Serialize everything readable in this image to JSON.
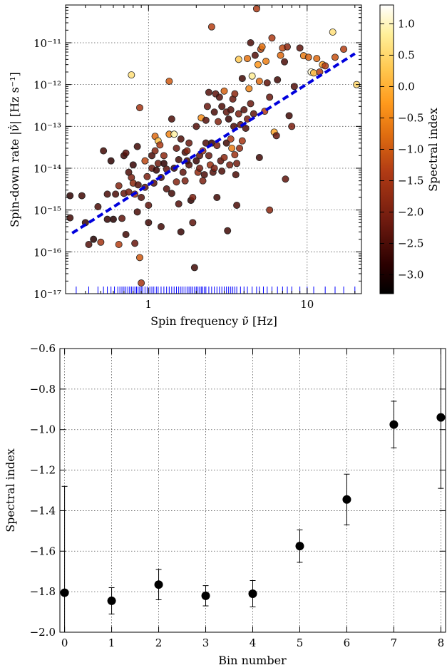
{
  "chart_data": [
    {
      "type": "scatter",
      "xlabel": "Spin frequency ν̃ [Hz]",
      "ylabel": "Spin-down rate |ν̃̇| [Hz s⁻¹]",
      "xscale": "log",
      "yscale": "log",
      "xlim": [
        0.3,
        22
      ],
      "ylim": [
        1e-17,
        8e-11
      ],
      "x_tick_labels": [
        "1",
        "10"
      ],
      "y_tick_labels": [
        "10⁻¹⁷",
        "10⁻¹⁶",
        "10⁻¹⁵",
        "10⁻¹⁴",
        "10⁻¹³",
        "10⁻¹²",
        "10⁻¹¹"
      ],
      "grid": true,
      "colorbar": {
        "label": "Spectral index",
        "range": [
          -3.3,
          1.3
        ],
        "tick_labels": [
          "1.0",
          "0.5",
          "0.0",
          "−0.5",
          "−1.0",
          "−1.5",
          "−2.0",
          "−2.5",
          "−3.0"
        ]
      },
      "fit_line": {
        "x": [
          0.33,
          20
        ],
        "y": [
          2.8e-16,
          5.5e-12
        ],
        "color": "#0000dd",
        "style": "dashed"
      },
      "rug_color": "#0000ff",
      "rug_x": [
        0.35,
        0.42,
        0.48,
        0.52,
        0.55,
        0.58,
        0.61,
        0.64,
        0.66,
        0.68,
        0.7,
        0.72,
        0.74,
        0.76,
        0.78,
        0.8,
        0.82,
        0.84,
        0.86,
        0.88,
        0.9,
        0.92,
        0.95,
        0.98,
        1.02,
        1.05,
        1.08,
        1.12,
        1.15,
        1.2,
        1.25,
        1.3,
        1.35,
        1.4,
        1.45,
        1.5,
        1.55,
        1.6,
        1.65,
        1.7,
        1.75,
        1.8,
        1.85,
        1.9,
        1.95,
        2.0,
        2.05,
        2.1,
        2.15,
        2.2,
        2.25,
        2.3,
        2.4,
        2.5,
        2.6,
        2.7,
        2.8,
        2.9,
        3.0,
        3.1,
        3.2,
        3.3,
        3.4,
        3.5,
        3.6,
        3.8,
        4.0,
        4.2,
        4.5,
        4.8,
        5.0,
        5.3,
        5.6,
        6.0,
        6.5,
        7.0,
        7.5,
        8.0,
        9.0,
        10.0,
        11.0,
        13.0,
        15.0,
        17.0,
        20.0
      ],
      "points": [
        [
          0.32,
          2.2e-15,
          -2.8
        ],
        [
          0.32,
          6.5e-16,
          -2.6
        ],
        [
          0.38,
          2.2e-15,
          -2.6
        ],
        [
          0.4,
          5e-16,
          -2.7
        ],
        [
          0.42,
          1.5e-16,
          -2.4
        ],
        [
          0.45,
          2e-16,
          -2.9
        ],
        [
          0.48,
          1.2e-15,
          -2.5
        ],
        [
          0.5,
          1.7e-16,
          -1.5
        ],
        [
          0.52,
          2.6e-14,
          -2.6
        ],
        [
          0.55,
          2.4e-15,
          -2.5
        ],
        [
          0.55,
          6e-16,
          -2.7
        ],
        [
          0.58,
          1.5e-14,
          -2.8
        ],
        [
          0.6,
          6e-16,
          -2.9
        ],
        [
          0.62,
          2.4e-15,
          -2.5
        ],
        [
          0.65,
          1.5e-16,
          -1.3
        ],
        [
          0.65,
          3.8e-15,
          -1.9
        ],
        [
          0.68,
          6.3e-16,
          -2.3
        ],
        [
          0.7,
          2e-14,
          -2.6
        ],
        [
          0.7,
          2.5e-15,
          -2.2
        ],
        [
          0.72,
          2.6e-16,
          -2.6
        ],
        [
          0.72,
          2.3e-14,
          -2.4
        ],
        [
          0.75,
          8e-15,
          -2.5
        ],
        [
          0.75,
          2.7e-15,
          -2.1
        ],
        [
          0.78,
          6e-15,
          -2.0
        ],
        [
          0.78,
          1.7e-12,
          0.6
        ],
        [
          0.8,
          1.2e-14,
          -2.7
        ],
        [
          0.8,
          4.4e-15,
          -1.8
        ],
        [
          0.82,
          2.4e-15,
          -1.6
        ],
        [
          0.82,
          1.6e-16,
          -2.2
        ],
        [
          0.85,
          3.3e-14,
          -2.6
        ],
        [
          0.85,
          9e-16,
          -2.5
        ],
        [
          0.86,
          4e-15,
          -2.4
        ],
        [
          0.88,
          2.8e-13,
          -1.5
        ],
        [
          0.88,
          7.3e-17,
          -1.0
        ],
        [
          0.9,
          1.8e-17,
          -1.5
        ],
        [
          0.9,
          2e-15,
          -2.4
        ],
        [
          0.95,
          1.5e-14,
          -1.2
        ],
        [
          0.95,
          3.5e-15,
          -2.3
        ],
        [
          0.98,
          6.3e-15,
          -2.0
        ],
        [
          1.0,
          1.3e-15,
          -2.3
        ],
        [
          1.0,
          5e-16,
          -2.6
        ],
        [
          1.05,
          1e-14,
          -2.2
        ],
        [
          1.05,
          2e-14,
          -2.5
        ],
        [
          1.08,
          4.4e-15,
          -2.4
        ],
        [
          1.1,
          5.8e-14,
          -0.8
        ],
        [
          1.1,
          2.6e-14,
          -1.9
        ],
        [
          1.12,
          9e-15,
          -2.7
        ],
        [
          1.15,
          4.5e-14,
          0.2
        ],
        [
          1.15,
          1.3e-14,
          -2.1
        ],
        [
          1.18,
          3.6e-14,
          -1.4
        ],
        [
          1.2,
          6e-15,
          -2.5
        ],
        [
          1.2,
          4e-16,
          -2.6
        ],
        [
          1.25,
          1.3e-14,
          -2.8
        ],
        [
          1.25,
          2e-14,
          -1.8
        ],
        [
          1.3,
          9.5e-15,
          -2.3
        ],
        [
          1.3,
          3.2e-15,
          -2.4
        ],
        [
          1.35,
          1.2e-12,
          -1.0
        ],
        [
          1.35,
          6.5e-14,
          -0.5
        ],
        [
          1.4,
          1.5e-13,
          -2.5
        ],
        [
          1.4,
          2.5e-15,
          -2.6
        ],
        [
          1.45,
          6.5e-14,
          0.9
        ],
        [
          1.45,
          1e-14,
          -2.7
        ],
        [
          1.5,
          3e-14,
          -2.2
        ],
        [
          1.5,
          4.7e-15,
          -1.9
        ],
        [
          1.55,
          1.4e-15,
          -2.4
        ],
        [
          1.55,
          1.6e-14,
          -2.6
        ],
        [
          1.6,
          5e-14,
          -2.5
        ],
        [
          1.6,
          3e-16,
          -2.7
        ],
        [
          1.65,
          8e-15,
          -2.3
        ],
        [
          1.7,
          2.4e-14,
          -2.4
        ],
        [
          1.7,
          5e-15,
          -2.0
        ],
        [
          1.75,
          1.5e-14,
          -2.6
        ],
        [
          1.75,
          2.6e-14,
          -1.9
        ],
        [
          1.8,
          4e-14,
          -2.2
        ],
        [
          1.8,
          1.2e-14,
          -2.5
        ],
        [
          1.85,
          1.7e-15,
          -2.8
        ],
        [
          1.9,
          2e-15,
          -2.0
        ],
        [
          1.9,
          5e-16,
          -2.3
        ],
        [
          1.95,
          4.2e-17,
          -2.6
        ],
        [
          2.0,
          1e-13,
          -2.4
        ],
        [
          2.0,
          1.5e-14,
          -2.7
        ],
        [
          2.05,
          8e-15,
          -1.7
        ],
        [
          2.1,
          2e-14,
          -2.3
        ],
        [
          2.1,
          1e-14,
          -2.1
        ],
        [
          2.15,
          1.6e-13,
          -0.4
        ],
        [
          2.2,
          2.6e-14,
          -1.5
        ],
        [
          2.2,
          5e-15,
          -2.0
        ],
        [
          2.25,
          7e-15,
          -2.5
        ],
        [
          2.3,
          4e-14,
          -2.5
        ],
        [
          2.3,
          1.4e-13,
          -2.4
        ],
        [
          2.35,
          3e-13,
          -2.2
        ],
        [
          2.4,
          6.5e-13,
          -2.4
        ],
        [
          2.4,
          2e-14,
          -2.2
        ],
        [
          2.45,
          1.2e-14,
          -1.6
        ],
        [
          2.5,
          2.4e-11,
          -1.3
        ],
        [
          2.5,
          4e-14,
          -2.7
        ],
        [
          2.55,
          8e-15,
          -2.4
        ],
        [
          2.6,
          2.2e-13,
          -2.5
        ],
        [
          2.6,
          1e-14,
          -2.0
        ],
        [
          2.65,
          6e-13,
          -2.3
        ],
        [
          2.7,
          2e-15,
          -2.6
        ],
        [
          2.7,
          3.5e-14,
          -2.0
        ],
        [
          2.75,
          1.3e-13,
          -1.9
        ],
        [
          2.8,
          5e-13,
          -2.4
        ],
        [
          2.85,
          1.5e-14,
          -2.3
        ],
        [
          2.9,
          3e-13,
          -2.5
        ],
        [
          2.9,
          8.5e-15,
          -2.5
        ],
        [
          3.0,
          1.8e-14,
          -1.8
        ],
        [
          3.0,
          7e-13,
          -0.9
        ],
        [
          3.1,
          4e-14,
          -2.6
        ],
        [
          3.1,
          2.2e-13,
          -2.3
        ],
        [
          3.15,
          3.2e-16,
          -2.6
        ],
        [
          3.2,
          1.5e-13,
          -2.7
        ],
        [
          3.25,
          1.2e-14,
          -2.0
        ],
        [
          3.3,
          2.5e-13,
          -2.4
        ],
        [
          3.3,
          5e-14,
          -1.4
        ],
        [
          3.35,
          3e-14,
          -0.6
        ],
        [
          3.4,
          4.5e-13,
          -2.2
        ],
        [
          3.45,
          1e-13,
          -2.5
        ],
        [
          3.5,
          6e-13,
          -1.8
        ],
        [
          3.5,
          2.1e-14,
          -1.6
        ],
        [
          3.55,
          7e-15,
          -2.5
        ],
        [
          3.6,
          1.3e-15,
          -2.5
        ],
        [
          3.6,
          1.3e-14,
          -2.1
        ],
        [
          3.7,
          4e-12,
          0.3
        ],
        [
          3.7,
          2e-13,
          -2.0
        ],
        [
          3.75,
          3e-14,
          -1.7
        ],
        [
          3.8,
          1.1e-13,
          -2.3
        ],
        [
          3.9,
          1.4e-12,
          -2.6
        ],
        [
          3.9,
          4.5e-14,
          -1.5
        ],
        [
          4.0,
          2.5e-13,
          -2.4
        ],
        [
          4.1,
          9e-14,
          -2.5
        ],
        [
          4.2,
          4.2e-12,
          -0.7
        ],
        [
          4.2,
          1.5e-13,
          -2.1
        ],
        [
          4.3,
          8e-13,
          -0.5
        ],
        [
          4.4,
          1e-11,
          -2.5
        ],
        [
          4.4,
          3.5e-13,
          -2.2
        ],
        [
          4.5,
          1.6e-12,
          0.8
        ],
        [
          4.6,
          2e-13,
          -2.3
        ],
        [
          4.7,
          5e-12,
          -2.4
        ],
        [
          4.8,
          6.5e-11,
          -1.4
        ],
        [
          4.9,
          3e-12,
          -0.3
        ],
        [
          5.0,
          1.2e-12,
          -0.8
        ],
        [
          5.0,
          1.8e-14,
          -2.6
        ],
        [
          5.1,
          7e-12,
          -1.2
        ],
        [
          5.2,
          8e-12,
          -0.7
        ],
        [
          5.4,
          2.3e-13,
          -1.4
        ],
        [
          5.5,
          3.6e-12,
          -0.6
        ],
        [
          5.6,
          1.1e-12,
          -2.3
        ],
        [
          5.8,
          5e-13,
          -2.2
        ],
        [
          5.8,
          1e-15,
          -1.8
        ],
        [
          6.0,
          1.3e-11,
          -1.4
        ],
        [
          6.2,
          7.3e-14,
          -0.1
        ],
        [
          6.4,
          6e-14,
          -2.2
        ],
        [
          6.5,
          1.3e-12,
          -2.6
        ],
        [
          6.8,
          5e-12,
          -0.8
        ],
        [
          7.0,
          7.5e-12,
          -1.2
        ],
        [
          7.2,
          3.5e-12,
          -2.5
        ],
        [
          7.3,
          5.5e-15,
          -2.3
        ],
        [
          7.5,
          8e-12,
          -1.8
        ],
        [
          7.7,
          1.8e-13,
          -2.6
        ],
        [
          8.0,
          1e-13,
          -2.0
        ],
        [
          8.3,
          9e-13,
          -2.4
        ],
        [
          9.0,
          7.5e-12,
          -2.3
        ],
        [
          9.5,
          4.9e-12,
          -0.6
        ],
        [
          10.2,
          4.5e-12,
          -0.9
        ],
        [
          10.6,
          2e-12,
          1.1
        ],
        [
          11.0,
          1.9e-12,
          0.1
        ],
        [
          11.5,
          4.2e-12,
          -0.8
        ],
        [
          12.0,
          2e-12,
          -1.3
        ],
        [
          12.5,
          3e-12,
          -0.2
        ],
        [
          13.0,
          2.8e-12,
          -1.4
        ],
        [
          14.5,
          1.8e-11,
          0.6
        ],
        [
          15.0,
          4.5e-12,
          -1.1
        ],
        [
          17.0,
          7e-12,
          -1.3
        ],
        [
          20.5,
          1e-12,
          0.5
        ]
      ]
    },
    {
      "type": "scatter",
      "xlabel": "Bin number",
      "ylabel": "Spectral index",
      "xlim": [
        -0.1,
        8.1
      ],
      "ylim": [
        -2.0,
        -0.6
      ],
      "x_tick_labels": [
        "0",
        "1",
        "2",
        "3",
        "4",
        "5",
        "6",
        "7",
        "8"
      ],
      "y_tick_labels": [
        "−2.0",
        "−1.8",
        "−1.6",
        "−1.4",
        "−1.2",
        "−1.0",
        "−0.8",
        "−0.6"
      ],
      "grid": true,
      "x": [
        0,
        1,
        2,
        3,
        4,
        5,
        6,
        7,
        8
      ],
      "y": [
        -1.805,
        -1.845,
        -1.765,
        -1.82,
        -1.81,
        -1.575,
        -1.345,
        -0.975,
        -0.94
      ],
      "y_err_low": [
        0.195,
        0.065,
        0.075,
        0.05,
        0.065,
        0.08,
        0.125,
        0.115,
        0.35
      ],
      "y_err_high": [
        0.525,
        0.065,
        0.075,
        0.05,
        0.065,
        0.08,
        0.125,
        0.115,
        0.35
      ]
    }
  ]
}
